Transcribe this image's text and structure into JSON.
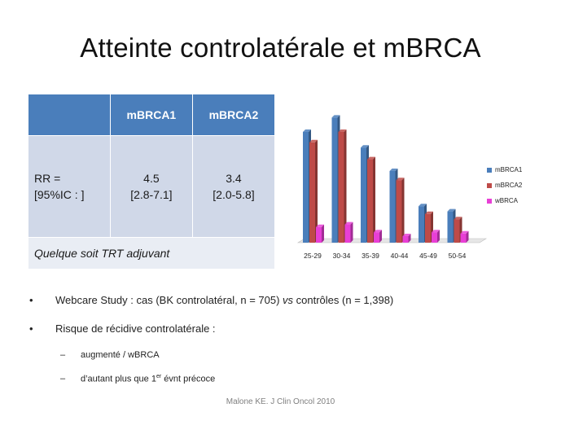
{
  "slide": {
    "title": "Atteinte controlatérale et mBRCA",
    "footer": "Malone KE. J Clin Oncol 2010"
  },
  "table": {
    "headers": [
      "",
      "mBRCA1",
      "mBRCA2"
    ],
    "row_label_1": "RR =",
    "row_label_2": "[95%IC : ]",
    "mbrca1_value": "4.5",
    "mbrca1_ci": "[2.8-7.1]",
    "mbrca2_value": "3.4",
    "mbrca2_ci": "[2.0-5.8]",
    "footer_note": "Quelque soit TRT adjuvant"
  },
  "bullets": {
    "b1_prefix": "Webcare Study : cas (BK controlatéral, n = 705) ",
    "b1_vs": "vs",
    "b1_suffix": " contrôles (n = 1,398)",
    "b2": "Risque de récidive controlatérale :",
    "s1": "augmenté / wBRCA",
    "s2_prefix": "d’autant plus que 1",
    "s2_sup": "er",
    "s2_suffix": " évnt précoce"
  },
  "chart_data": {
    "type": "bar",
    "categories": [
      "25-29",
      "30-34",
      "35-39",
      "40-44",
      "45-49",
      "50-54"
    ],
    "series": [
      {
        "name": "mBRCA1",
        "color": "#4a7ebb",
        "values": [
          85,
          96,
          73,
          55,
          28,
          24
        ]
      },
      {
        "name": "mBRCA2",
        "color": "#be4b48",
        "values": [
          77,
          85,
          64,
          48,
          22,
          18
        ]
      },
      {
        "name": "wBRCA",
        "color": "#e83fd6",
        "values": [
          12,
          14,
          8,
          5,
          8,
          7
        ]
      }
    ],
    "legend": "right",
    "grid": false,
    "ylim": [
      0,
      100
    ]
  }
}
